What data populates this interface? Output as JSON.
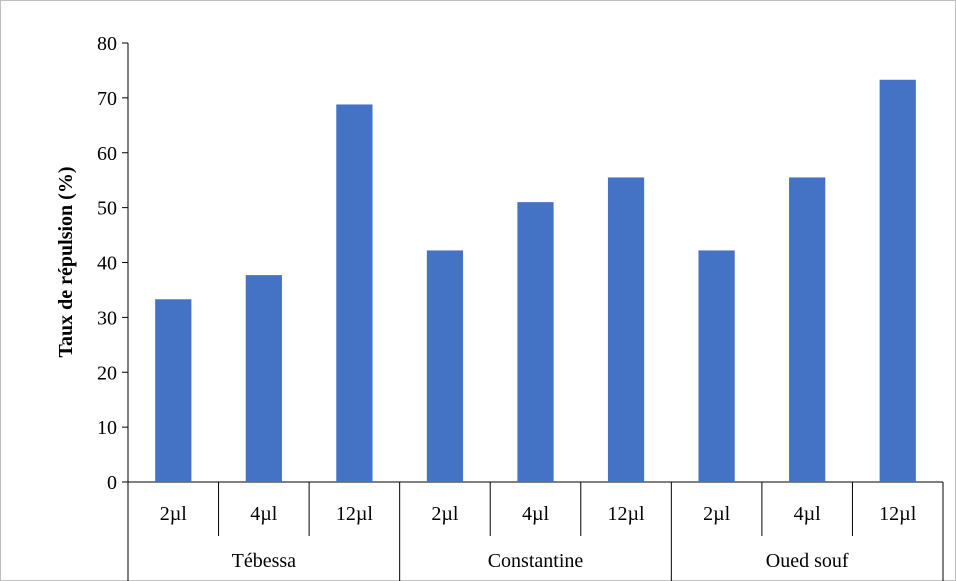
{
  "chart_data": {
    "type": "bar",
    "groups": [
      "Tébessa",
      "Constantine",
      "Oued souf"
    ],
    "categories": [
      "2µl",
      "4µl",
      "12µl",
      "2µl",
      "4µl",
      "12µl",
      "2µl",
      "4µl",
      "12µl"
    ],
    "values": [
      33.3,
      37.7,
      68.8,
      42.2,
      51.0,
      55.5,
      42.2,
      55.5,
      73.3
    ],
    "ylabel": "Taux de répulsion (%)",
    "xlabel": "",
    "ylim": [
      0,
      80
    ],
    "yticks": [
      0,
      10,
      20,
      30,
      40,
      50,
      60,
      70,
      80
    ],
    "bar_color": "#4472C4",
    "grid": false,
    "legend": "none"
  }
}
